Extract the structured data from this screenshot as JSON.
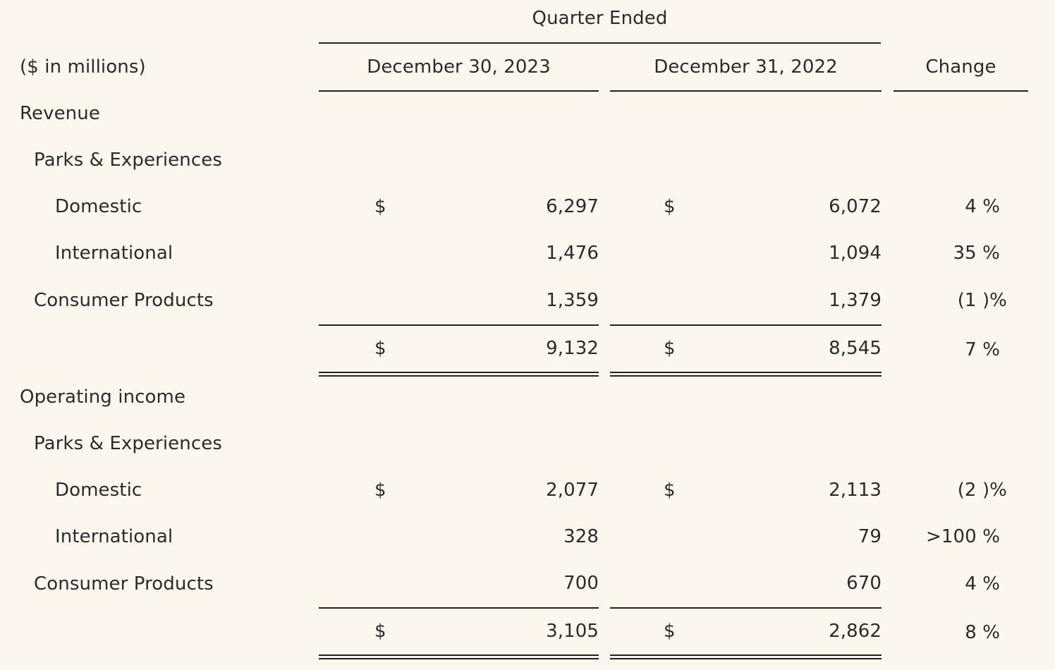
{
  "header": {
    "period_group": "Quarter Ended",
    "units": "($ in millions)",
    "col_current": "December 30, 2023",
    "col_prior": "December 31, 2022",
    "col_change": "Change"
  },
  "revenue": {
    "section_label": "Revenue",
    "group_label": "Parks & Experiences",
    "domestic": {
      "label": "Domestic",
      "cur_sym": "$",
      "cur": "6,297",
      "prior_sym": "$",
      "prior": "6,072",
      "change": "4 %"
    },
    "international": {
      "label": "International",
      "cur": "1,476",
      "prior": "1,094",
      "change": "35 %"
    },
    "consumer": {
      "label": "Consumer Products",
      "cur": "1,359",
      "prior": "1,379",
      "change": "(1 )%"
    },
    "total": {
      "cur_sym": "$",
      "cur": "9,132",
      "prior_sym": "$",
      "prior": "8,545",
      "change": "7 %"
    }
  },
  "operating_income": {
    "section_label": "Operating income",
    "group_label": "Parks & Experiences",
    "domestic": {
      "label": "Domestic",
      "cur_sym": "$",
      "cur": "2,077",
      "prior_sym": "$",
      "prior": "2,113",
      "change": "(2 )%"
    },
    "international": {
      "label": "International",
      "cur": "328",
      "prior": "79",
      "change": ">100 %"
    },
    "consumer": {
      "label": "Consumer Products",
      "cur": "700",
      "prior": "670",
      "change": "4 %"
    },
    "total": {
      "cur_sym": "$",
      "cur": "3,105",
      "prior_sym": "$",
      "prior": "2,862",
      "change": "8 %"
    }
  }
}
